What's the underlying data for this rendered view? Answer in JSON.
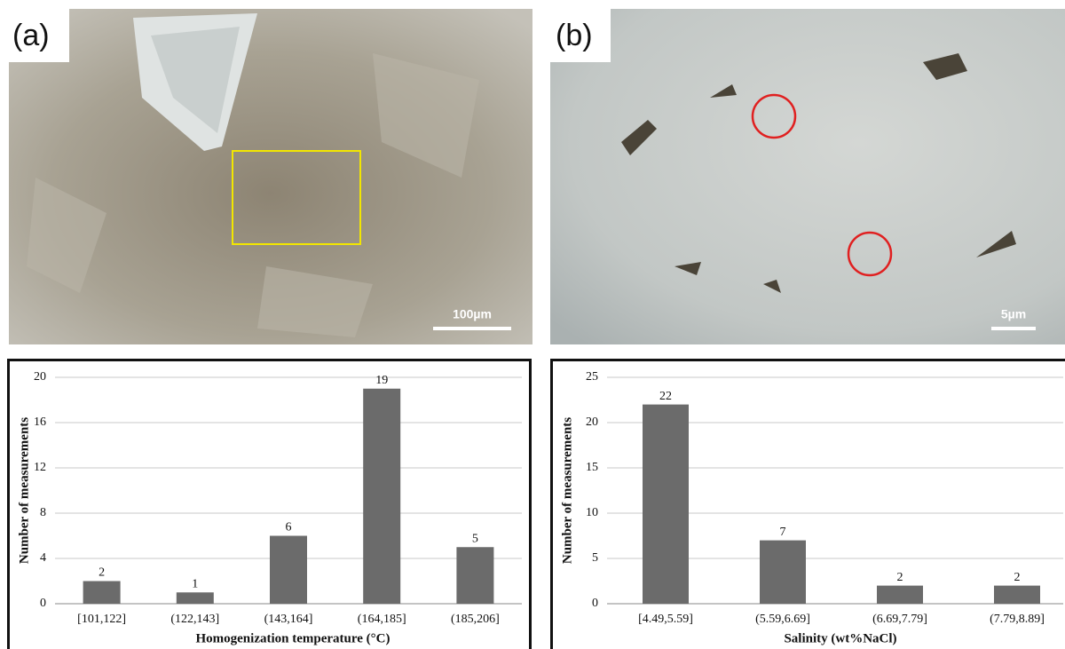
{
  "panels": [
    {
      "label": "(a)",
      "scale_bar": "100µm"
    },
    {
      "label": "(b)",
      "scale_bar": "5µm"
    }
  ],
  "chart_data": [
    {
      "type": "bar",
      "categories": [
        "[101,122]",
        "(122,143]",
        "(143,164]",
        "(164,185]",
        "(185,206]"
      ],
      "values": [
        2,
        1,
        6,
        19,
        5
      ],
      "color": "#6b6b6b",
      "ylim": [
        0,
        20
      ],
      "yticks": [
        0,
        4,
        8,
        12,
        16,
        20
      ],
      "grid": true,
      "y_label": "Number of measurements",
      "x_label": "Homogenization temperature (°C)"
    },
    {
      "type": "bar",
      "categories": [
        "[4.49,5.59]",
        "(5.59,6.69]",
        "(6.69,7.79]",
        "(7.79,8.89]"
      ],
      "values": [
        22,
        7,
        2,
        2
      ],
      "color": "#6b6b6b",
      "ylim": [
        0,
        25
      ],
      "yticks": [
        0,
        5,
        10,
        15,
        20,
        25
      ],
      "grid": true,
      "y_label": "Number of measurements",
      "x_label": "Salinity (wt%NaCl)"
    }
  ]
}
